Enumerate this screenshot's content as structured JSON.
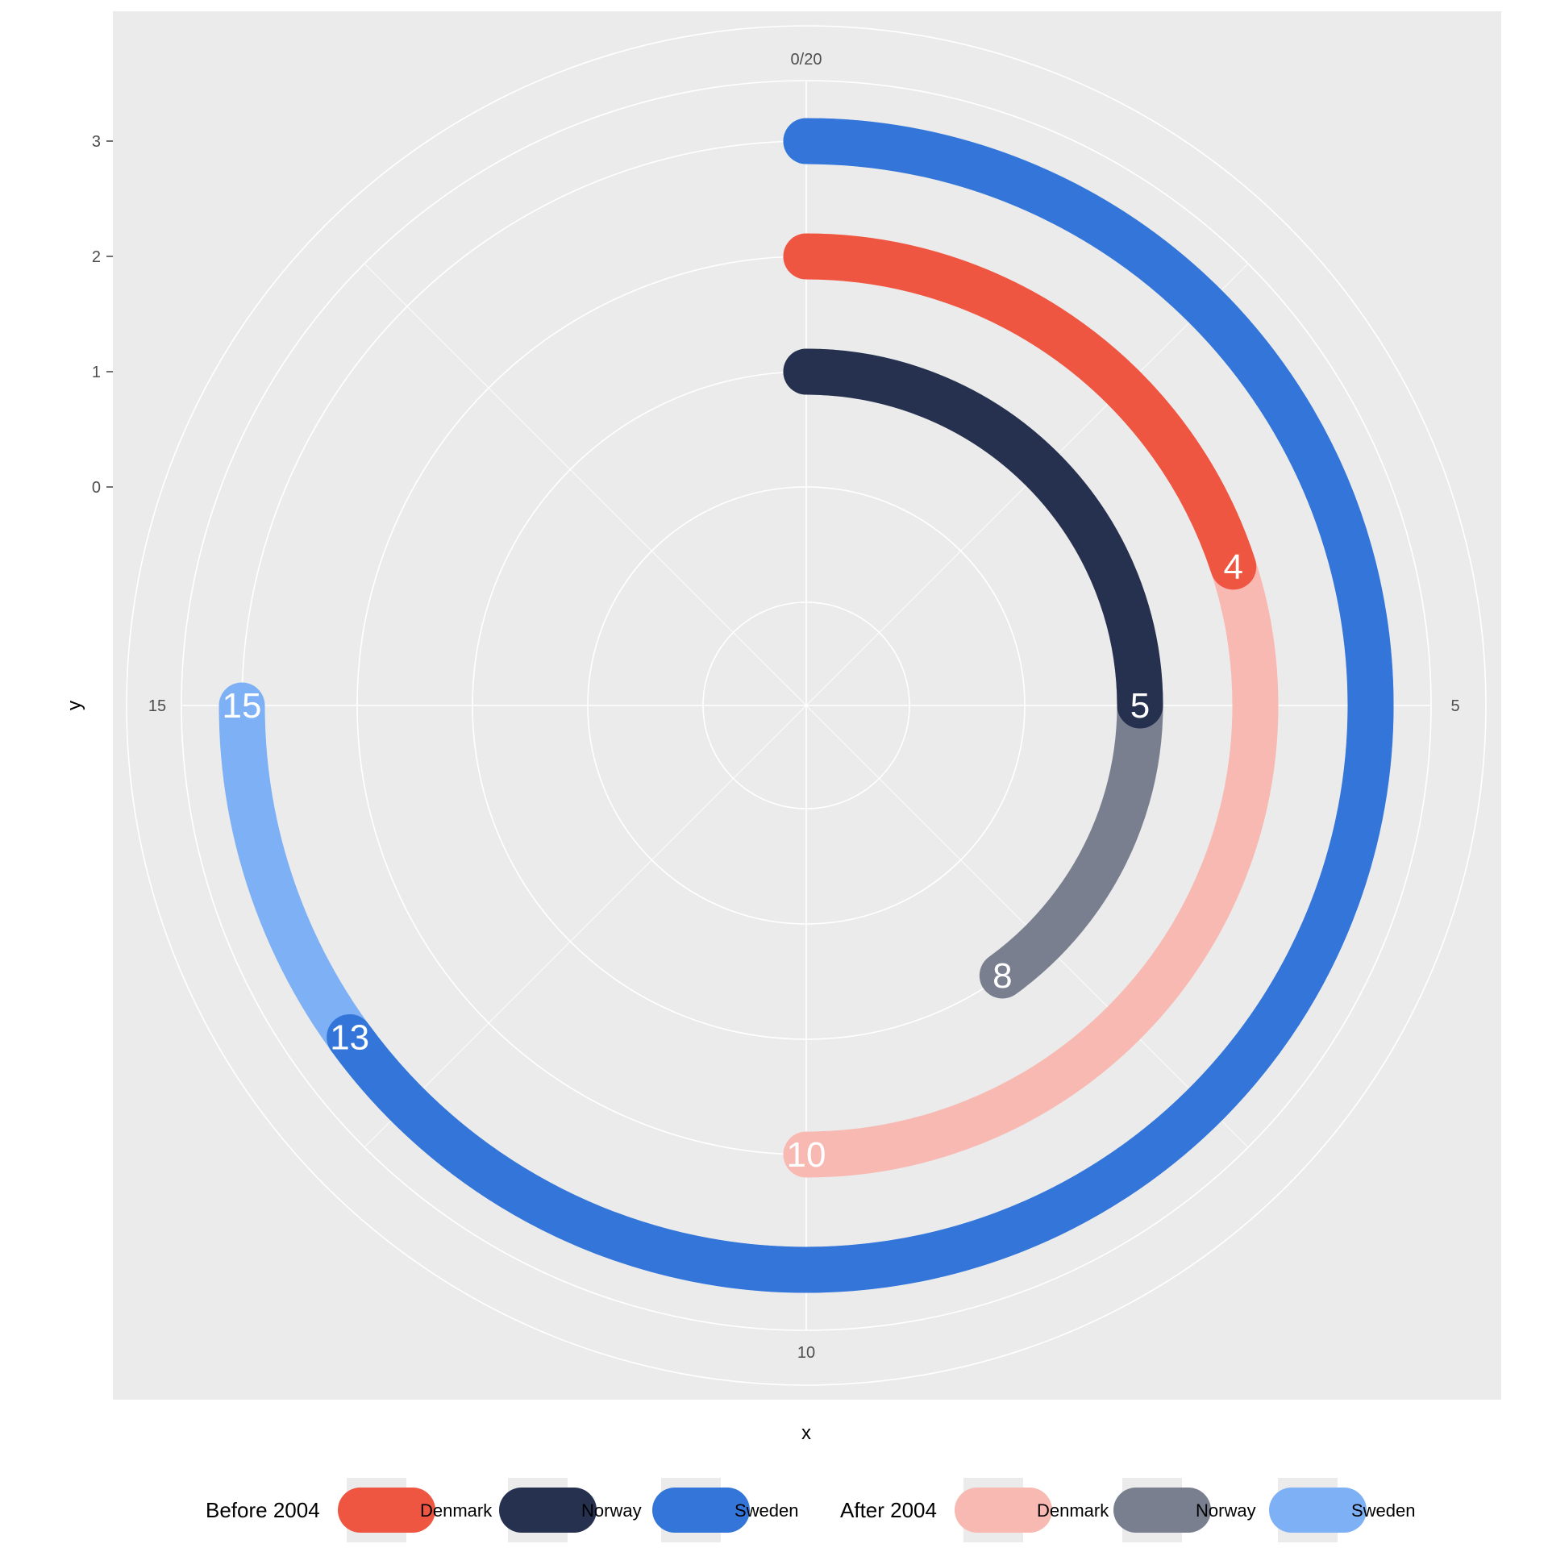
{
  "chart_data": {
    "type": "radial-bar",
    "xlabel": "x",
    "ylabel": "y",
    "theta_range": [
      0,
      20
    ],
    "theta_ticks": [
      "0/20",
      "5",
      "10",
      "15"
    ],
    "radial_ticks": [
      "0",
      "1",
      "2",
      "3"
    ],
    "grid": true,
    "legend_position": "bottom",
    "legend_groups": [
      {
        "title": "Before 2004",
        "items": [
          {
            "label": "Denmark",
            "color": "#ef5642"
          },
          {
            "label": "Norway",
            "color": "#26304f"
          },
          {
            "label": "Sweden",
            "color": "#3375d8"
          }
        ]
      },
      {
        "title": "After 2004",
        "items": [
          {
            "label": "Denmark",
            "color": "#f8b9b2"
          },
          {
            "label": "Norway",
            "color": "#7a7f90"
          },
          {
            "label": "Sweden",
            "color": "#7db0f5"
          }
        ]
      }
    ],
    "series": [
      {
        "country": "Norway",
        "y": 1,
        "before_end": 5,
        "after_end": 8,
        "before_color": "#26304f",
        "after_color": "#7a7f90"
      },
      {
        "country": "Denmark",
        "y": 2,
        "before_end": 4,
        "after_end": 10,
        "before_color": "#ef5642",
        "after_color": "#f8b9b2"
      },
      {
        "country": "Sweden",
        "y": 3,
        "before_end": 13,
        "after_end": 15,
        "before_color": "#3375d8",
        "after_color": "#7db0f5"
      }
    ]
  }
}
